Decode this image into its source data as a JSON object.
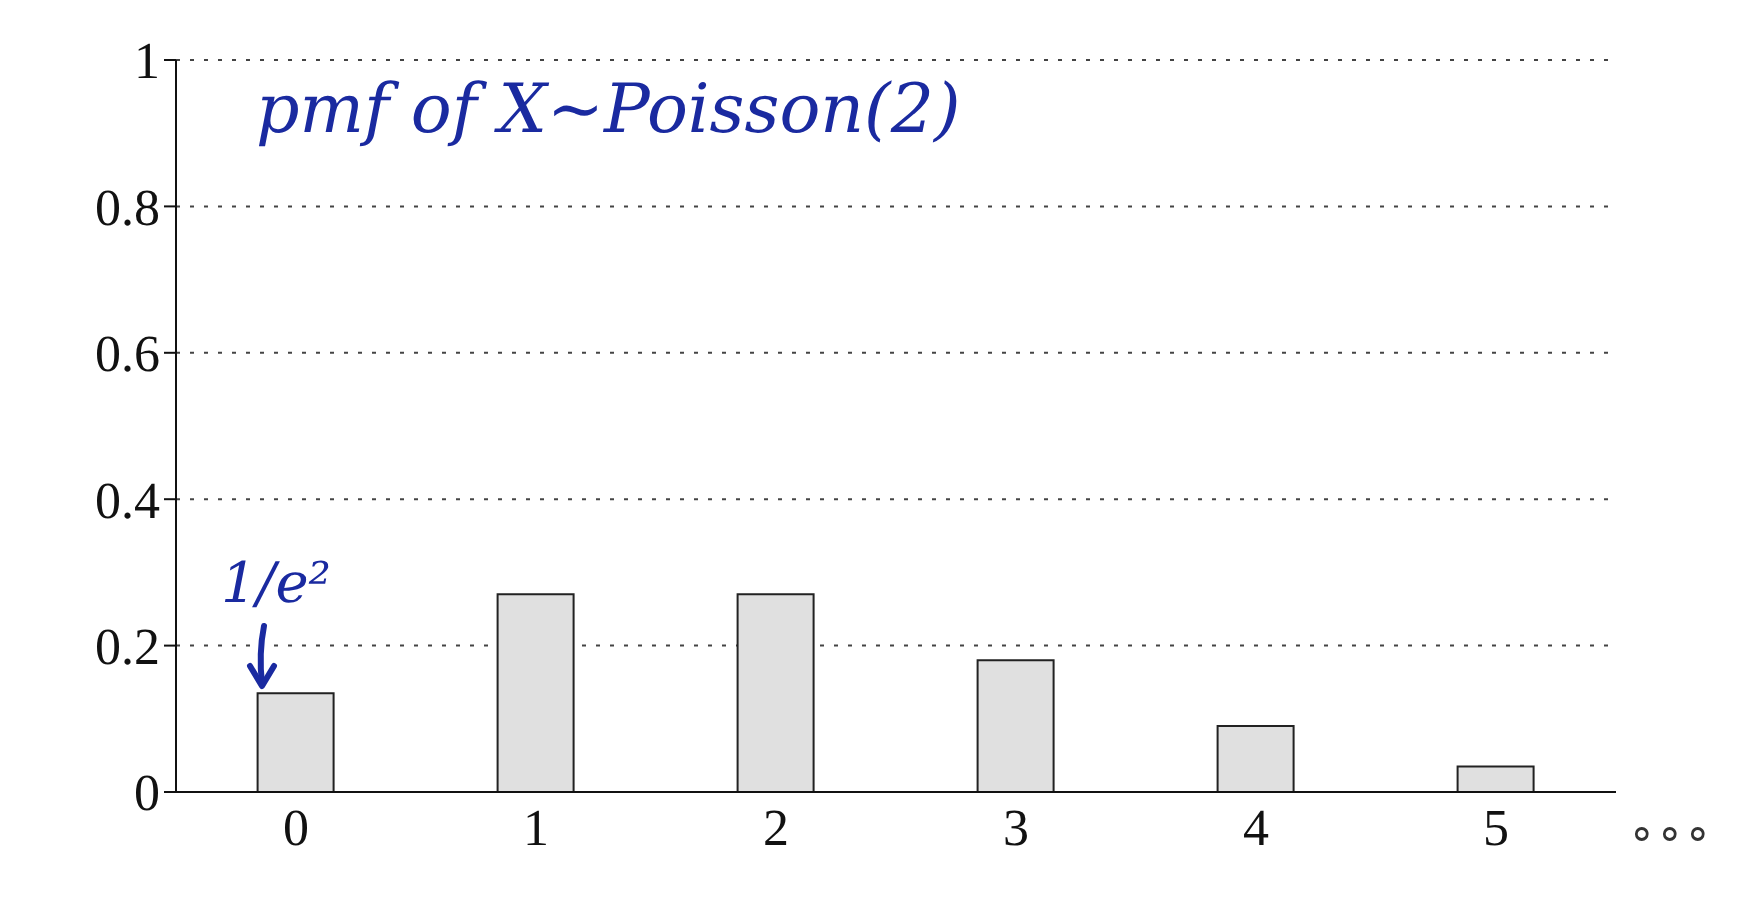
{
  "chart_data": {
    "type": "bar",
    "title": "pmf of X~Poisson(2)",
    "categories": [
      "0",
      "1",
      "2",
      "3",
      "4",
      "5"
    ],
    "values": [
      0.135,
      0.27,
      0.27,
      0.18,
      0.09,
      0.035
    ],
    "color": "#e0e0e0",
    "ylim": [
      0,
      1
    ],
    "yticks": [
      0,
      0.2,
      0.4,
      0.6,
      0.8,
      1
    ],
    "grid": "y",
    "annotations": [
      {
        "text": "1/e²",
        "x": "0",
        "y": 0.135
      },
      "∘∘∘"
    ]
  }
}
